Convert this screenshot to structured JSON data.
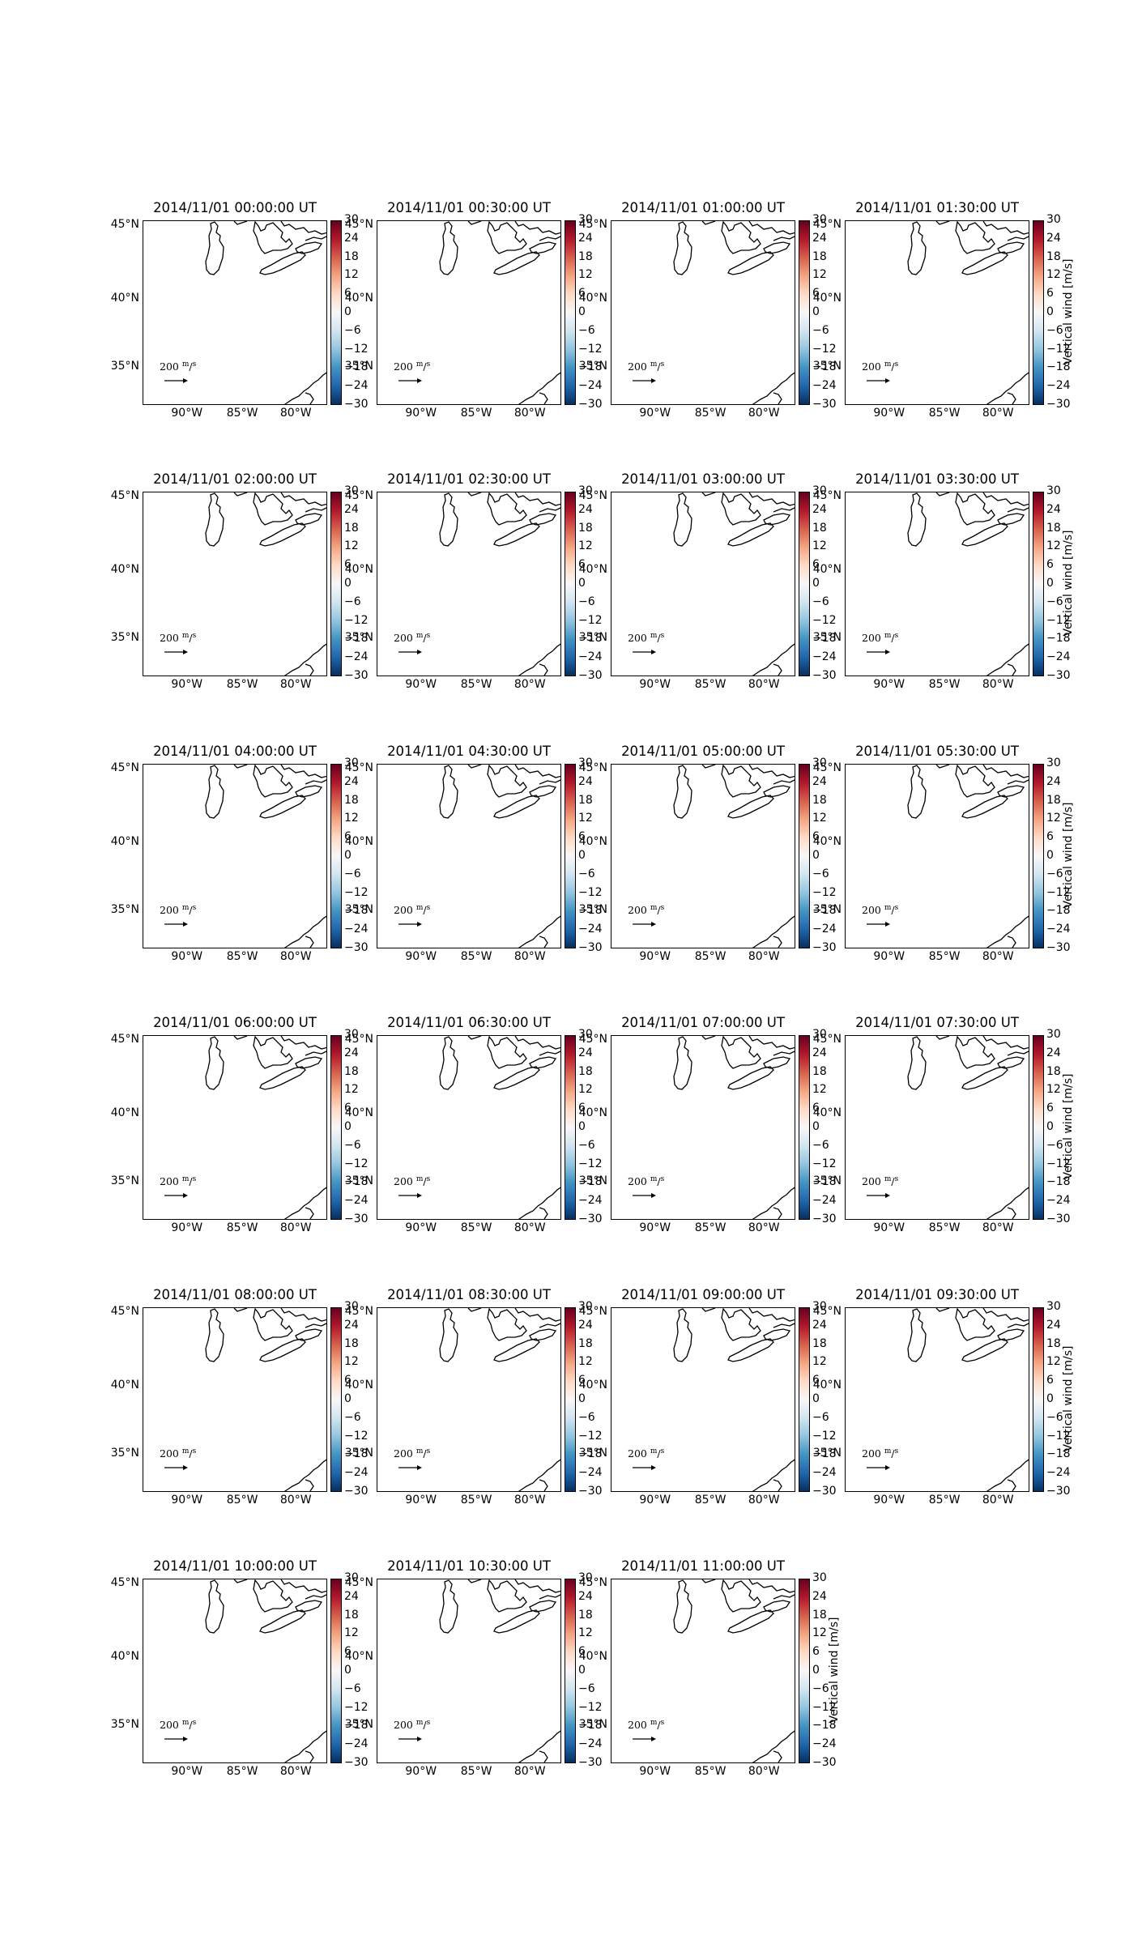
{
  "figure": {
    "panels": [
      {
        "title": "2014/11/01 00:00:00 UT"
      },
      {
        "title": "2014/11/01 00:30:00 UT"
      },
      {
        "title": "2014/11/01 01:00:00 UT"
      },
      {
        "title": "2014/11/01 01:30:00 UT"
      },
      {
        "title": "2014/11/01 02:00:00 UT"
      },
      {
        "title": "2014/11/01 02:30:00 UT"
      },
      {
        "title": "2014/11/01 03:00:00 UT"
      },
      {
        "title": "2014/11/01 03:30:00 UT"
      },
      {
        "title": "2014/11/01 04:00:00 UT"
      },
      {
        "title": "2014/11/01 04:30:00 UT"
      },
      {
        "title": "2014/11/01 05:00:00 UT"
      },
      {
        "title": "2014/11/01 05:30:00 UT"
      },
      {
        "title": "2014/11/01 06:00:00 UT"
      },
      {
        "title": "2014/11/01 06:30:00 UT"
      },
      {
        "title": "2014/11/01 07:00:00 UT"
      },
      {
        "title": "2014/11/01 07:30:00 UT"
      },
      {
        "title": "2014/11/01 08:00:00 UT"
      },
      {
        "title": "2014/11/01 08:30:00 UT"
      },
      {
        "title": "2014/11/01 09:00:00 UT"
      },
      {
        "title": "2014/11/01 09:30:00 UT"
      },
      {
        "title": "2014/11/01 10:00:00 UT"
      },
      {
        "title": "2014/11/01 10:30:00 UT"
      },
      {
        "title": "2014/11/01 11:00:00 UT"
      }
    ],
    "lat_labels": [
      "45°N",
      "40°N",
      "35°N"
    ],
    "lon_labels": [
      "90°W",
      "85°W",
      "80°W"
    ],
    "colorbar": {
      "ticks": [
        "30",
        "24",
        "18",
        "12",
        "6",
        "0",
        "−6",
        "−12",
        "−18",
        "−24",
        "−30"
      ],
      "label": "Vertical wind [m/s]",
      "colormap": [
        "#67001f",
        "#b2182b",
        "#d6604d",
        "#f4a582",
        "#fddbc7",
        "#f7f7f7",
        "#d1e5f0",
        "#92c5de",
        "#4393c3",
        "#2166ac",
        "#053061"
      ]
    },
    "quiver_key": {
      "value": "200",
      "unit_num": "m",
      "unit_den": "s"
    },
    "coast_color": "#000000"
  }
}
